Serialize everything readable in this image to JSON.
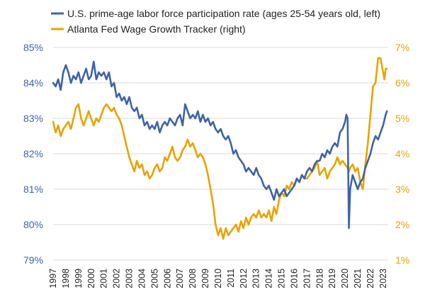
{
  "chart_data": {
    "type": "line",
    "title": "",
    "x_labels": [
      "1997",
      "1998",
      "1999",
      "2000",
      "2001",
      "2002",
      "2003",
      "2004",
      "2005",
      "2006",
      "2007",
      "2008",
      "2009",
      "2010",
      "2011",
      "2012",
      "2013",
      "2014",
      "2015",
      "2016",
      "2017",
      "2018",
      "2019",
      "2020",
      "2021",
      "2022",
      "2023"
    ],
    "xlim": [
      1997,
      2023.4
    ],
    "y_left": {
      "ylim": [
        79,
        85
      ],
      "ticks": [
        "79%",
        "80%",
        "81%",
        "82%",
        "83%",
        "84%",
        "85%"
      ],
      "tick_values": [
        79,
        80,
        81,
        82,
        83,
        84,
        85
      ]
    },
    "y_right": {
      "ylim": [
        1,
        7
      ],
      "ticks": [
        "1%",
        "2%",
        "3%",
        "4%",
        "5%",
        "6%",
        "7%"
      ],
      "tick_values": [
        1,
        2,
        3,
        4,
        5,
        6,
        7
      ]
    },
    "series": [
      {
        "name": "U.S. prime-age labor force participation rate (ages 25-54 years old, left)",
        "axis": "left",
        "color": "#3f63a8",
        "points": [
          [
            1997.0,
            84.0
          ],
          [
            1997.2,
            83.9
          ],
          [
            1997.4,
            84.1
          ],
          [
            1997.6,
            83.8
          ],
          [
            1997.8,
            84.3
          ],
          [
            1998.0,
            84.5
          ],
          [
            1998.2,
            84.3
          ],
          [
            1998.4,
            84.0
          ],
          [
            1998.6,
            84.2
          ],
          [
            1998.8,
            84.1
          ],
          [
            1999.0,
            84.3
          ],
          [
            1999.2,
            84.0
          ],
          [
            1999.4,
            84.2
          ],
          [
            1999.6,
            84.4
          ],
          [
            1999.8,
            84.1
          ],
          [
            2000.0,
            84.2
          ],
          [
            2000.2,
            84.6
          ],
          [
            2000.4,
            84.1
          ],
          [
            2000.6,
            84.3
          ],
          [
            2000.8,
            84.2
          ],
          [
            2001.0,
            84.3
          ],
          [
            2001.2,
            84.1
          ],
          [
            2001.4,
            84.3
          ],
          [
            2001.6,
            83.9
          ],
          [
            2001.8,
            84.0
          ],
          [
            2002.0,
            83.6
          ],
          [
            2002.2,
            83.7
          ],
          [
            2002.4,
            83.5
          ],
          [
            2002.6,
            83.6
          ],
          [
            2002.8,
            83.4
          ],
          [
            2003.0,
            83.6
          ],
          [
            2003.2,
            83.3
          ],
          [
            2003.4,
            83.2
          ],
          [
            2003.6,
            83.3
          ],
          [
            2003.8,
            83.0
          ],
          [
            2004.0,
            83.1
          ],
          [
            2004.2,
            82.8
          ],
          [
            2004.4,
            82.9
          ],
          [
            2004.6,
            82.7
          ],
          [
            2004.8,
            82.8
          ],
          [
            2005.0,
            82.7
          ],
          [
            2005.2,
            82.9
          ],
          [
            2005.4,
            82.6
          ],
          [
            2005.6,
            82.8
          ],
          [
            2005.8,
            82.9
          ],
          [
            2006.0,
            82.8
          ],
          [
            2006.2,
            83.0
          ],
          [
            2006.4,
            82.9
          ],
          [
            2006.6,
            82.8
          ],
          [
            2006.8,
            83.0
          ],
          [
            2007.0,
            83.1
          ],
          [
            2007.2,
            82.8
          ],
          [
            2007.4,
            83.4
          ],
          [
            2007.6,
            83.2
          ],
          [
            2007.8,
            83.0
          ],
          [
            2008.0,
            83.1
          ],
          [
            2008.2,
            83.0
          ],
          [
            2008.4,
            83.2
          ],
          [
            2008.6,
            82.9
          ],
          [
            2008.8,
            83.1
          ],
          [
            2009.0,
            82.9
          ],
          [
            2009.2,
            83.0
          ],
          [
            2009.4,
            82.8
          ],
          [
            2009.6,
            82.9
          ],
          [
            2009.8,
            82.7
          ],
          [
            2010.0,
            82.6
          ],
          [
            2010.2,
            82.7
          ],
          [
            2010.4,
            82.5
          ],
          [
            2010.6,
            82.4
          ],
          [
            2010.8,
            82.5
          ],
          [
            2011.0,
            82.3
          ],
          [
            2011.2,
            82.0
          ],
          [
            2011.4,
            82.1
          ],
          [
            2011.6,
            81.9
          ],
          [
            2011.8,
            81.8
          ],
          [
            2012.0,
            81.7
          ],
          [
            2012.2,
            81.5
          ],
          [
            2012.4,
            81.6
          ],
          [
            2012.6,
            81.5
          ],
          [
            2012.8,
            81.4
          ],
          [
            2013.0,
            81.6
          ],
          [
            2013.2,
            81.4
          ],
          [
            2013.4,
            81.3
          ],
          [
            2013.6,
            81.1
          ],
          [
            2013.8,
            81.0
          ],
          [
            2014.0,
            81.1
          ],
          [
            2014.2,
            80.9
          ],
          [
            2014.4,
            80.7
          ],
          [
            2014.6,
            81.0
          ],
          [
            2014.8,
            80.8
          ],
          [
            2015.0,
            80.9
          ],
          [
            2015.2,
            81.0
          ],
          [
            2015.4,
            80.8
          ],
          [
            2015.6,
            80.9
          ],
          [
            2015.8,
            81.0
          ],
          [
            2016.0,
            81.1
          ],
          [
            2016.2,
            81.3
          ],
          [
            2016.4,
            81.2
          ],
          [
            2016.6,
            81.4
          ],
          [
            2016.8,
            81.3
          ],
          [
            2017.0,
            81.5
          ],
          [
            2017.2,
            81.6
          ],
          [
            2017.4,
            81.5
          ],
          [
            2017.6,
            81.7
          ],
          [
            2017.8,
            81.8
          ],
          [
            2018.0,
            81.8
          ],
          [
            2018.2,
            82.0
          ],
          [
            2018.4,
            81.9
          ],
          [
            2018.6,
            82.1
          ],
          [
            2018.8,
            82.0
          ],
          [
            2019.0,
            82.2
          ],
          [
            2019.2,
            82.3
          ],
          [
            2019.4,
            82.2
          ],
          [
            2019.6,
            82.6
          ],
          [
            2019.8,
            82.7
          ],
          [
            2020.0,
            82.9
          ],
          [
            2020.1,
            83.1
          ],
          [
            2020.2,
            83.0
          ],
          [
            2020.3,
            79.9
          ],
          [
            2020.4,
            81.0
          ],
          [
            2020.6,
            81.4
          ],
          [
            2020.8,
            81.2
          ],
          [
            2021.0,
            81.0
          ],
          [
            2021.2,
            81.2
          ],
          [
            2021.4,
            81.3
          ],
          [
            2021.6,
            81.6
          ],
          [
            2021.8,
            81.8
          ],
          [
            2022.0,
            82.0
          ],
          [
            2022.2,
            82.3
          ],
          [
            2022.4,
            82.5
          ],
          [
            2022.6,
            82.4
          ],
          [
            2022.8,
            82.6
          ],
          [
            2023.0,
            82.8
          ],
          [
            2023.2,
            83.1
          ],
          [
            2023.3,
            83.2
          ]
        ]
      },
      {
        "name": "Atlanta Fed Wage Growth Tracker (right)",
        "axis": "right",
        "color": "#e8a300",
        "points": [
          [
            1997.0,
            4.9
          ],
          [
            1997.2,
            4.6
          ],
          [
            1997.4,
            4.8
          ],
          [
            1997.6,
            4.5
          ],
          [
            1997.8,
            4.7
          ],
          [
            1998.0,
            4.8
          ],
          [
            1998.2,
            4.9
          ],
          [
            1998.4,
            4.7
          ],
          [
            1998.6,
            5.0
          ],
          [
            1998.8,
            5.3
          ],
          [
            1999.0,
            5.4
          ],
          [
            1999.2,
            5.0
          ],
          [
            1999.4,
            4.8
          ],
          [
            1999.6,
            5.0
          ],
          [
            1999.8,
            5.2
          ],
          [
            2000.0,
            5.0
          ],
          [
            2000.2,
            4.8
          ],
          [
            2000.4,
            5.0
          ],
          [
            2000.6,
            4.9
          ],
          [
            2000.8,
            5.1
          ],
          [
            2001.0,
            5.3
          ],
          [
            2001.2,
            5.4
          ],
          [
            2001.4,
            5.3
          ],
          [
            2001.6,
            5.2
          ],
          [
            2001.8,
            5.3
          ],
          [
            2002.0,
            5.1
          ],
          [
            2002.2,
            5.0
          ],
          [
            2002.4,
            4.8
          ],
          [
            2002.6,
            4.5
          ],
          [
            2002.8,
            4.2
          ],
          [
            2003.0,
            3.9
          ],
          [
            2003.2,
            3.7
          ],
          [
            2003.4,
            3.5
          ],
          [
            2003.6,
            3.8
          ],
          [
            2003.8,
            3.6
          ],
          [
            2004.0,
            3.7
          ],
          [
            2004.2,
            3.4
          ],
          [
            2004.4,
            3.5
          ],
          [
            2004.6,
            3.3
          ],
          [
            2004.8,
            3.4
          ],
          [
            2005.0,
            3.6
          ],
          [
            2005.2,
            3.7
          ],
          [
            2005.4,
            3.5
          ],
          [
            2005.6,
            3.6
          ],
          [
            2005.8,
            3.9
          ],
          [
            2006.0,
            3.8
          ],
          [
            2006.2,
            4.0
          ],
          [
            2006.4,
            4.2
          ],
          [
            2006.6,
            3.9
          ],
          [
            2006.8,
            3.8
          ],
          [
            2007.0,
            3.9
          ],
          [
            2007.2,
            4.1
          ],
          [
            2007.4,
            4.2
          ],
          [
            2007.6,
            4.4
          ],
          [
            2007.8,
            4.2
          ],
          [
            2008.0,
            4.3
          ],
          [
            2008.2,
            4.1
          ],
          [
            2008.4,
            3.9
          ],
          [
            2008.6,
            4.0
          ],
          [
            2008.8,
            3.9
          ],
          [
            2009.0,
            3.7
          ],
          [
            2009.2,
            3.4
          ],
          [
            2009.4,
            3.0
          ],
          [
            2009.6,
            2.6
          ],
          [
            2009.8,
            2.0
          ],
          [
            2010.0,
            1.7
          ],
          [
            2010.2,
            1.9
          ],
          [
            2010.4,
            1.6
          ],
          [
            2010.6,
            1.9
          ],
          [
            2010.8,
            1.7
          ],
          [
            2011.0,
            1.8
          ],
          [
            2011.2,
            1.9
          ],
          [
            2011.4,
            2.0
          ],
          [
            2011.6,
            1.8
          ],
          [
            2011.8,
            2.1
          ],
          [
            2012.0,
            1.9
          ],
          [
            2012.2,
            2.2
          ],
          [
            2012.4,
            2.0
          ],
          [
            2012.6,
            2.2
          ],
          [
            2012.8,
            2.3
          ],
          [
            2013.0,
            2.2
          ],
          [
            2013.2,
            2.4
          ],
          [
            2013.4,
            2.2
          ],
          [
            2013.6,
            2.3
          ],
          [
            2013.8,
            2.2
          ],
          [
            2014.0,
            2.4
          ],
          [
            2014.2,
            2.1
          ],
          [
            2014.4,
            2.5
          ],
          [
            2014.6,
            2.3
          ],
          [
            2014.8,
            2.7
          ],
          [
            2015.0,
            2.9
          ],
          [
            2015.2,
            2.8
          ],
          [
            2015.4,
            3.1
          ],
          [
            2015.6,
            3.0
          ],
          [
            2015.8,
            3.2
          ],
          [
            2016.0,
            3.1
          ],
          [
            2016.2,
            3.3
          ],
          [
            2016.4,
            3.2
          ],
          [
            2016.6,
            3.4
          ],
          [
            2016.8,
            3.3
          ],
          [
            2017.0,
            3.3
          ],
          [
            2017.2,
            3.4
          ],
          [
            2017.4,
            3.5
          ],
          [
            2017.6,
            3.6
          ],
          [
            2017.8,
            3.8
          ],
          [
            2018.0,
            3.4
          ],
          [
            2018.2,
            3.5
          ],
          [
            2018.4,
            3.6
          ],
          [
            2018.6,
            3.3
          ],
          [
            2018.8,
            3.5
          ],
          [
            2019.0,
            3.6
          ],
          [
            2019.2,
            3.7
          ],
          [
            2019.4,
            3.9
          ],
          [
            2019.6,
            3.7
          ],
          [
            2019.8,
            3.8
          ],
          [
            2020.0,
            3.7
          ],
          [
            2020.2,
            3.6
          ],
          [
            2020.3,
            3.5
          ],
          [
            2020.4,
            3.6
          ],
          [
            2020.6,
            3.7
          ],
          [
            2020.8,
            3.5
          ],
          [
            2021.0,
            3.6
          ],
          [
            2021.2,
            3.2
          ],
          [
            2021.4,
            3.0
          ],
          [
            2021.6,
            3.7
          ],
          [
            2021.8,
            4.3
          ],
          [
            2022.0,
            5.1
          ],
          [
            2022.2,
            5.9
          ],
          [
            2022.4,
            6.0
          ],
          [
            2022.6,
            6.7
          ],
          [
            2022.8,
            6.7
          ],
          [
            2023.0,
            6.3
          ],
          [
            2023.1,
            6.1
          ],
          [
            2023.2,
            6.4
          ],
          [
            2023.3,
            6.4
          ]
        ]
      }
    ]
  }
}
